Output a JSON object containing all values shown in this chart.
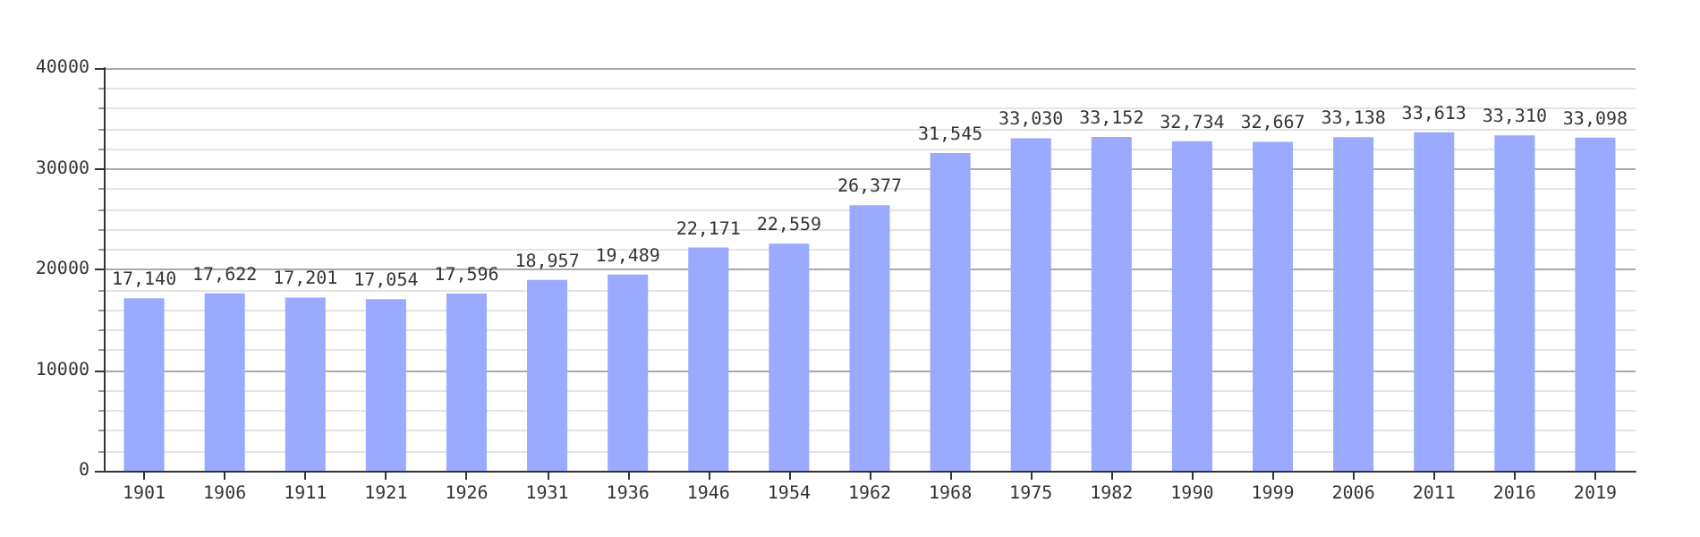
{
  "chart_data": {
    "type": "bar",
    "categories": [
      "1901",
      "1906",
      "1911",
      "1921",
      "1926",
      "1931",
      "1936",
      "1946",
      "1954",
      "1962",
      "1968",
      "1975",
      "1982",
      "1990",
      "1999",
      "2006",
      "2011",
      "2016",
      "2019"
    ],
    "values": [
      17140,
      17622,
      17201,
      17054,
      17596,
      18957,
      19489,
      22171,
      22559,
      26377,
      31545,
      33030,
      33152,
      32734,
      32667,
      33138,
      33613,
      33310,
      33098
    ],
    "value_labels": [
      "17,140",
      "17,622",
      "17,201",
      "17,054",
      "17,596",
      "18,957",
      "19,489",
      "22,171",
      "22,559",
      "26,377",
      "31,545",
      "33,030",
      "33,152",
      "32,734",
      "32,667",
      "33,138",
      "33,613",
      "33,310",
      "33,098"
    ],
    "color": "#99aaff",
    "ylim": [
      0,
      40000
    ],
    "yticks": [
      0,
      10000,
      20000,
      30000,
      40000
    ],
    "grid": "y"
  }
}
